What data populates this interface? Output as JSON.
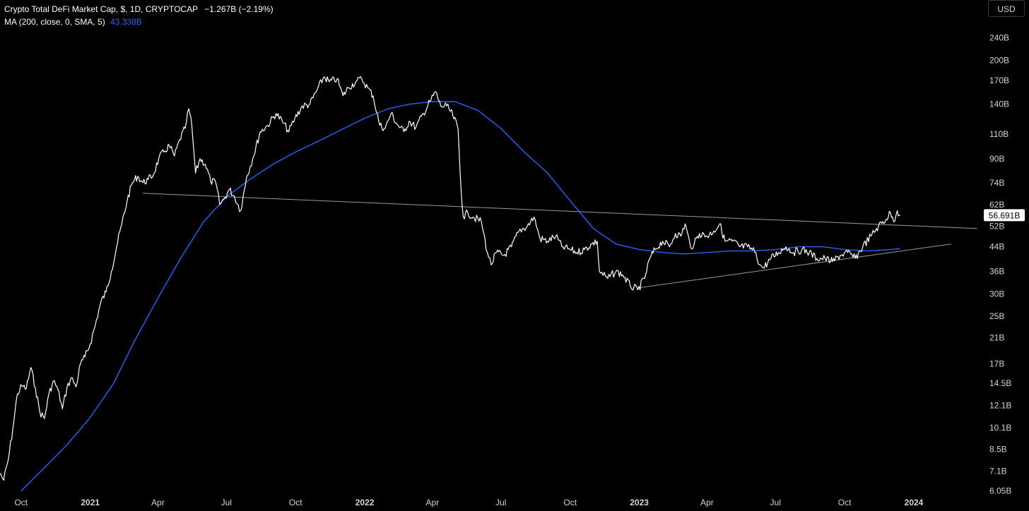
{
  "legend": {
    "title": "Crypto Total DeFi Market Cap, $, 1D, CRYPTOCAP",
    "change": "−1.267B (−2.19%)",
    "ma_label": "MA (200, close, 0, SMA, 5)",
    "ma_value": "43.338B"
  },
  "currency_button": "USD",
  "colors": {
    "background": "#000000",
    "price_line": "#ffffff",
    "ma_line": "#2962ff",
    "trend_line": "#9598a1",
    "axis_text": "#d1d4dc"
  },
  "chart_data": {
    "type": "line",
    "x_axis": {
      "ticks": [
        "Oct",
        "2021",
        "Apr",
        "Jul",
        "Oct",
        "2022",
        "Apr",
        "Jul",
        "Oct",
        "2023",
        "Apr",
        "Jul",
        "Oct",
        "2024"
      ],
      "tick_dates": [
        "2020-10-01",
        "2021-01-01",
        "2021-04-01",
        "2021-07-01",
        "2021-10-01",
        "2022-01-01",
        "2022-04-01",
        "2022-07-01",
        "2022-10-01",
        "2023-01-01",
        "2023-04-01",
        "2023-07-01",
        "2023-10-01",
        "2024-01-01"
      ],
      "range": [
        "2020-09-03",
        "2024-04-03"
      ]
    },
    "y_axis": {
      "scale": "log",
      "ticks": [
        "240B",
        "200B",
        "170B",
        "140B",
        "110B",
        "90B",
        "74B",
        "62B",
        "52B",
        "44B",
        "36B",
        "30B",
        "25B",
        "21B",
        "17B",
        "14.5B",
        "12.1B",
        "10.1B",
        "8.5B",
        "7.1B",
        "6.05B"
      ],
      "tick_values": [
        240,
        200,
        170,
        140,
        110,
        90,
        74,
        62,
        52,
        44,
        36,
        30,
        25,
        21,
        17,
        14.5,
        12.1,
        10.1,
        8.5,
        7.1,
        6.05
      ],
      "unit": "B",
      "range": [
        5.9,
        275
      ]
    },
    "last_value_label": "56.691B",
    "last_value": 56.69,
    "series": [
      {
        "id": "price",
        "points": [
          [
            "2020-09-03",
            7.0
          ],
          [
            "2020-09-08",
            6.6
          ],
          [
            "2020-09-14",
            7.8
          ],
          [
            "2020-09-20",
            10.0
          ],
          [
            "2020-09-26",
            13.3
          ],
          [
            "2020-10-02",
            14.2
          ],
          [
            "2020-10-08",
            13.9
          ],
          [
            "2020-10-14",
            16.5
          ],
          [
            "2020-10-20",
            14.0
          ],
          [
            "2020-10-26",
            11.5
          ],
          [
            "2020-11-01",
            10.9
          ],
          [
            "2020-11-07",
            13.3
          ],
          [
            "2020-11-13",
            14.8
          ],
          [
            "2020-11-19",
            13.8
          ],
          [
            "2020-11-25",
            11.8
          ],
          [
            "2020-12-01",
            14.0
          ],
          [
            "2020-12-07",
            15.2
          ],
          [
            "2020-12-13",
            14.1
          ],
          [
            "2020-12-19",
            17.0
          ],
          [
            "2020-12-25",
            18.0
          ],
          [
            "2021-01-01",
            20.0
          ],
          [
            "2021-01-08",
            23.5
          ],
          [
            "2021-01-15",
            28.0
          ],
          [
            "2021-01-22",
            30.5
          ],
          [
            "2021-01-29",
            36.0
          ],
          [
            "2021-02-05",
            44.0
          ],
          [
            "2021-02-12",
            53.0
          ],
          [
            "2021-02-19",
            64.0
          ],
          [
            "2021-02-26",
            74.0
          ],
          [
            "2021-03-05",
            78.0
          ],
          [
            "2021-03-12",
            74.0
          ],
          [
            "2021-03-19",
            76.0
          ],
          [
            "2021-03-26",
            79.0
          ],
          [
            "2021-04-02",
            90.0
          ],
          [
            "2021-04-09",
            95.0
          ],
          [
            "2021-04-16",
            100.0
          ],
          [
            "2021-04-23",
            92.0
          ],
          [
            "2021-04-30",
            105.0
          ],
          [
            "2021-05-07",
            115.0
          ],
          [
            "2021-05-12",
            135.0
          ],
          [
            "2021-05-16",
            118.0
          ],
          [
            "2021-05-21",
            80.0
          ],
          [
            "2021-05-27",
            90.0
          ],
          [
            "2021-06-03",
            86.0
          ],
          [
            "2021-06-10",
            75.0
          ],
          [
            "2021-06-17",
            74.0
          ],
          [
            "2021-06-22",
            62.0
          ],
          [
            "2021-06-28",
            65.0
          ],
          [
            "2021-07-05",
            70.0
          ],
          [
            "2021-07-12",
            66.0
          ],
          [
            "2021-07-20",
            59.0
          ],
          [
            "2021-07-28",
            78.0
          ],
          [
            "2021-08-05",
            90.0
          ],
          [
            "2021-08-15",
            112.0
          ],
          [
            "2021-08-25",
            118.0
          ],
          [
            "2021-09-05",
            130.0
          ],
          [
            "2021-09-15",
            120.0
          ],
          [
            "2021-09-22",
            112.0
          ],
          [
            "2021-09-30",
            125.0
          ],
          [
            "2021-10-10",
            138.0
          ],
          [
            "2021-10-20",
            140.0
          ],
          [
            "2021-10-30",
            158.0
          ],
          [
            "2021-11-08",
            175.0
          ],
          [
            "2021-11-15",
            168.0
          ],
          [
            "2021-11-25",
            172.0
          ],
          [
            "2021-12-03",
            150.0
          ],
          [
            "2021-12-10",
            160.0
          ],
          [
            "2021-12-20",
            168.0
          ],
          [
            "2021-12-28",
            172.0
          ],
          [
            "2022-01-05",
            160.0
          ],
          [
            "2022-01-12",
            150.0
          ],
          [
            "2022-01-21",
            118.0
          ],
          [
            "2022-01-28",
            115.0
          ],
          [
            "2022-02-05",
            130.0
          ],
          [
            "2022-02-12",
            120.0
          ],
          [
            "2022-02-22",
            112.0
          ],
          [
            "2022-03-01",
            122.0
          ],
          [
            "2022-03-10",
            116.0
          ],
          [
            "2022-03-20",
            130.0
          ],
          [
            "2022-03-30",
            145.0
          ],
          [
            "2022-04-05",
            155.0
          ],
          [
            "2022-04-12",
            138.0
          ],
          [
            "2022-04-20",
            138.0
          ],
          [
            "2022-04-28",
            128.0
          ],
          [
            "2022-05-05",
            115.0
          ],
          [
            "2022-05-09",
            70.0
          ],
          [
            "2022-05-12",
            56.0
          ],
          [
            "2022-05-18",
            58.0
          ],
          [
            "2022-05-25",
            56.0
          ],
          [
            "2022-06-05",
            54.0
          ],
          [
            "2022-06-13",
            42.0
          ],
          [
            "2022-06-18",
            38.0
          ],
          [
            "2022-06-25",
            42.0
          ],
          [
            "2022-07-05",
            41.0
          ],
          [
            "2022-07-15",
            44.0
          ],
          [
            "2022-07-25",
            50.0
          ],
          [
            "2022-08-05",
            52.0
          ],
          [
            "2022-08-14",
            56.0
          ],
          [
            "2022-08-22",
            47.0
          ],
          [
            "2022-09-01",
            46.0
          ],
          [
            "2022-09-12",
            48.0
          ],
          [
            "2022-09-20",
            44.0
          ],
          [
            "2022-10-01",
            43.0
          ],
          [
            "2022-10-10",
            42.0
          ],
          [
            "2022-10-20",
            43.0
          ],
          [
            "2022-10-30",
            45.0
          ],
          [
            "2022-11-06",
            46.0
          ],
          [
            "2022-11-09",
            36.0
          ],
          [
            "2022-11-20",
            34.0
          ],
          [
            "2022-12-01",
            36.0
          ],
          [
            "2022-12-10",
            35.0
          ],
          [
            "2022-12-20",
            32.0
          ],
          [
            "2022-12-30",
            31.0
          ],
          [
            "2023-01-08",
            34.0
          ],
          [
            "2023-01-15",
            40.0
          ],
          [
            "2023-01-22",
            43.0
          ],
          [
            "2023-02-01",
            46.0
          ],
          [
            "2023-02-10",
            44.0
          ],
          [
            "2023-02-18",
            49.0
          ],
          [
            "2023-02-25",
            48.0
          ],
          [
            "2023-03-03",
            53.0
          ],
          [
            "2023-03-10",
            44.0
          ],
          [
            "2023-03-15",
            45.0
          ],
          [
            "2023-03-22",
            49.0
          ],
          [
            "2023-04-01",
            48.0
          ],
          [
            "2023-04-10",
            50.0
          ],
          [
            "2023-04-18",
            53.0
          ],
          [
            "2023-04-25",
            46.0
          ],
          [
            "2023-05-05",
            46.0
          ],
          [
            "2023-05-15",
            44.0
          ],
          [
            "2023-05-25",
            44.0
          ],
          [
            "2023-06-05",
            42.0
          ],
          [
            "2023-06-10",
            38.0
          ],
          [
            "2023-06-15",
            37.0
          ],
          [
            "2023-06-25",
            40.0
          ],
          [
            "2023-07-05",
            42.0
          ],
          [
            "2023-07-15",
            44.0
          ],
          [
            "2023-07-25",
            42.0
          ],
          [
            "2023-08-05",
            43.0
          ],
          [
            "2023-08-15",
            42.0
          ],
          [
            "2023-08-25",
            40.0
          ],
          [
            "2023-09-05",
            40.0
          ],
          [
            "2023-09-15",
            39.0
          ],
          [
            "2023-09-25",
            41.0
          ],
          [
            "2023-10-05",
            42.0
          ],
          [
            "2023-10-15",
            40.0
          ],
          [
            "2023-10-25",
            44.0
          ],
          [
            "2023-11-05",
            48.0
          ],
          [
            "2023-11-15",
            52.0
          ],
          [
            "2023-11-25",
            55.0
          ],
          [
            "2023-12-01",
            58.0
          ],
          [
            "2023-12-05",
            54.0
          ],
          [
            "2023-12-10",
            59.0
          ],
          [
            "2023-12-14",
            56.7
          ]
        ]
      },
      {
        "id": "ma",
        "points": [
          [
            "2020-10-01",
            6.05
          ],
          [
            "2020-11-01",
            7.3
          ],
          [
            "2020-12-01",
            8.8
          ],
          [
            "2021-01-01",
            11.0
          ],
          [
            "2021-02-01",
            14.5
          ],
          [
            "2021-03-01",
            20.5
          ],
          [
            "2021-04-01",
            29.0
          ],
          [
            "2021-05-01",
            40.0
          ],
          [
            "2021-06-01",
            54.0
          ],
          [
            "2021-07-01",
            66.0
          ],
          [
            "2021-08-01",
            76.0
          ],
          [
            "2021-09-01",
            86.0
          ],
          [
            "2021-10-01",
            95.0
          ],
          [
            "2021-11-01",
            104.0
          ],
          [
            "2021-12-01",
            114.0
          ],
          [
            "2022-01-01",
            125.0
          ],
          [
            "2022-02-01",
            135.0
          ],
          [
            "2022-03-01",
            140.0
          ],
          [
            "2022-04-01",
            143.0
          ],
          [
            "2022-05-01",
            143.0
          ],
          [
            "2022-06-01",
            133.0
          ],
          [
            "2022-07-01",
            115.0
          ],
          [
            "2022-08-01",
            95.0
          ],
          [
            "2022-09-01",
            80.0
          ],
          [
            "2022-10-01",
            64.0
          ],
          [
            "2022-11-01",
            51.0
          ],
          [
            "2022-12-01",
            45.0
          ],
          [
            "2023-01-01",
            43.0
          ],
          [
            "2023-02-01",
            42.0
          ],
          [
            "2023-03-01",
            41.5
          ],
          [
            "2023-04-01",
            42.0
          ],
          [
            "2023-05-01",
            42.5
          ],
          [
            "2023-06-01",
            42.5
          ],
          [
            "2023-07-01",
            43.0
          ],
          [
            "2023-08-01",
            44.0
          ],
          [
            "2023-09-01",
            44.0
          ],
          [
            "2023-10-01",
            43.0
          ],
          [
            "2023-11-01",
            42.5
          ],
          [
            "2023-12-01",
            43.0
          ],
          [
            "2023-12-14",
            43.34
          ]
        ]
      }
    ],
    "trend_lines": [
      {
        "id": "resistance",
        "from": [
          "2021-03-12",
          68.0
        ],
        "to": [
          "2024-03-25",
          51.0
        ]
      },
      {
        "id": "support",
        "from": [
          "2022-12-30",
          31.5
        ],
        "to": [
          "2024-02-20",
          45.0
        ]
      }
    ],
    "grid": false,
    "legend_position": "top-left"
  }
}
